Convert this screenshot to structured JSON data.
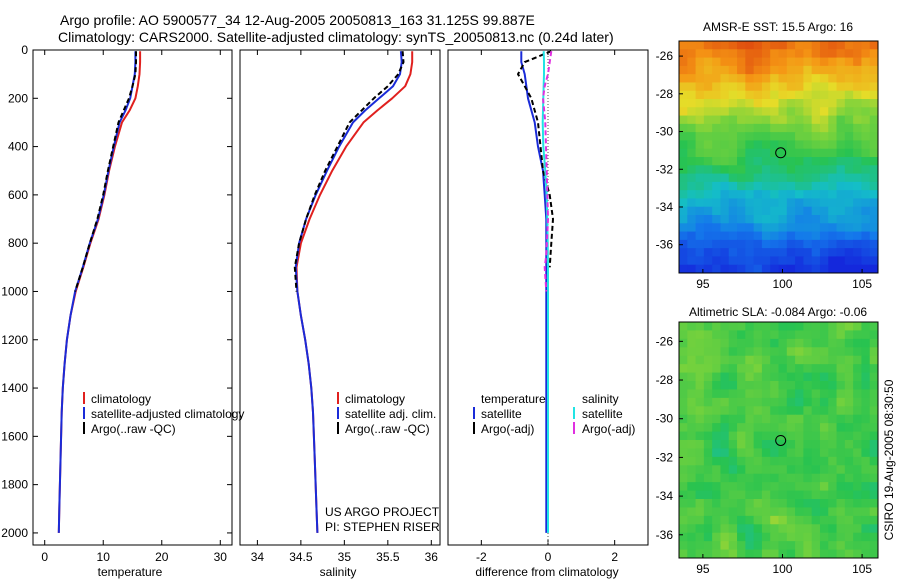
{
  "figure": {
    "title_line1": "Argo profile: AO 5900577_34 12-Aug-2005 20050813_163 31.125S 99.887E",
    "title_line2": "Climatology: CARS2000. Satellite-adjusted climatology: synTS_20050813.nc (0.24d later)",
    "side_label": "CSIRO 19-Aug-2005 08:30:50",
    "credit_line1": "US ARGO PROJECT",
    "credit_line2": "PI: STEPHEN RISER"
  },
  "colors": {
    "climatology": "#e0201e",
    "satellite": "#1a2bd8",
    "argo": "#000000",
    "satellite_sal": "#20e4e4",
    "argo_sal": "#e030e0",
    "zero_line": "#555555"
  },
  "chart_data": [
    {
      "type": "line",
      "id": "temperature",
      "xlabel": "temperature",
      "ylabel": "",
      "xlim": [
        -2,
        32
      ],
      "ylim": [
        2050,
        0
      ],
      "xticks": [
        0,
        10,
        20,
        30
      ],
      "yticks": [
        0,
        200,
        400,
        600,
        800,
        1000,
        1200,
        1400,
        1600,
        1800,
        2000
      ],
      "legend_items": [
        "climatology",
        "satellite-adjusted climatology",
        "Argo(..raw -QC)"
      ],
      "series": [
        {
          "name": "climatology",
          "color_key": "climatology",
          "x": [
            16.3,
            16.3,
            16.2,
            15.9,
            15.5,
            14.5,
            13.2,
            12.0,
            11.0,
            10.2,
            9.2,
            7.8,
            6.6,
            5.3,
            4.4,
            3.8,
            3.4,
            3.1,
            2.9,
            2.7,
            2.5,
            2.4
          ],
          "y": [
            5,
            50,
            100,
            150,
            200,
            250,
            300,
            400,
            500,
            600,
            700,
            800,
            900,
            1000,
            1100,
            1200,
            1300,
            1400,
            1500,
            1700,
            1900,
            2000
          ]
        },
        {
          "name": "satellite-adjusted climatology",
          "color_key": "satellite",
          "x": [
            15.5,
            15.5,
            15.4,
            15.0,
            14.6,
            13.8,
            12.8,
            11.8,
            10.9,
            10.1,
            9.1,
            7.7,
            6.5,
            5.2,
            4.4,
            3.8,
            3.4,
            3.1,
            2.9,
            2.7,
            2.5,
            2.4
          ],
          "y": [
            5,
            50,
            100,
            150,
            200,
            250,
            300,
            400,
            500,
            600,
            700,
            800,
            900,
            1000,
            1100,
            1200,
            1300,
            1400,
            1500,
            1700,
            1900,
            2000
          ]
        },
        {
          "name": "Argo(..raw -QC)",
          "color_key": "argo",
          "dashed": true,
          "x": [
            15.6,
            15.6,
            15.5,
            15.0,
            14.4,
            13.5,
            12.6,
            11.7,
            10.8,
            10.0,
            9.0,
            7.7,
            6.5,
            5.2
          ],
          "y": [
            5,
            50,
            100,
            150,
            200,
            250,
            300,
            400,
            500,
            600,
            700,
            800,
            900,
            1000
          ]
        }
      ]
    },
    {
      "type": "line",
      "id": "salinity",
      "xlabel": "salinity",
      "ylabel": "",
      "xlim": [
        33.8,
        36.1
      ],
      "ylim": [
        2050,
        0
      ],
      "xticks": [
        34,
        34.5,
        35,
        35.5,
        36
      ],
      "xtick_labels": [
        "34",
        "34.5",
        "35",
        "35.5",
        "36"
      ],
      "legend_items": [
        "climatology",
        "satellite adj. clim.",
        "Argo(..raw -QC)"
      ],
      "series": [
        {
          "name": "climatology",
          "color_key": "climatology",
          "x": [
            35.78,
            35.78,
            35.76,
            35.7,
            35.55,
            35.38,
            35.22,
            35.02,
            34.86,
            34.72,
            34.6,
            34.5,
            34.45,
            34.46,
            34.5,
            34.55,
            34.59,
            34.62,
            34.64,
            34.66,
            34.68,
            34.69
          ],
          "y": [
            5,
            50,
            100,
            150,
            200,
            250,
            300,
            400,
            500,
            600,
            700,
            800,
            900,
            1000,
            1100,
            1200,
            1300,
            1400,
            1500,
            1700,
            1900,
            2000
          ]
        },
        {
          "name": "satellite adj. clim.",
          "color_key": "satellite",
          "x": [
            35.65,
            35.66,
            35.64,
            35.56,
            35.4,
            35.24,
            35.1,
            34.94,
            34.8,
            34.67,
            34.56,
            34.48,
            34.44,
            34.46,
            34.5,
            34.55,
            34.59,
            34.62,
            34.64,
            34.66,
            34.68,
            34.69
          ],
          "y": [
            5,
            50,
            100,
            150,
            200,
            250,
            300,
            400,
            500,
            600,
            700,
            800,
            900,
            1000,
            1100,
            1200,
            1300,
            1400,
            1500,
            1700,
            1900,
            2000
          ]
        },
        {
          "name": "Argo(..raw -QC)",
          "color_key": "argo",
          "dashed": true,
          "x": [
            35.67,
            35.68,
            35.62,
            35.5,
            35.34,
            35.2,
            35.06,
            34.92,
            34.78,
            34.66,
            34.56,
            34.48,
            34.43,
            34.45
          ],
          "y": [
            5,
            50,
            100,
            150,
            200,
            250,
            300,
            400,
            500,
            600,
            700,
            800,
            900,
            1000
          ]
        }
      ]
    },
    {
      "type": "line",
      "id": "difference",
      "xlabel": "difference from climatology",
      "ylabel": "",
      "xlim": [
        -3,
        3
      ],
      "ylim": [
        2050,
        0
      ],
      "xticks": [
        -2,
        0,
        2
      ],
      "legend_left_header": "temperature",
      "legend_right_header": "salinity",
      "legend_items": [
        "satellite",
        "Argo(-adj)",
        "satellite",
        "Argo(-adj)"
      ],
      "series": [
        {
          "name": "temperature satellite",
          "color_key": "satellite",
          "x": [
            -0.8,
            -0.8,
            -0.7,
            -0.6,
            -0.4,
            -0.3,
            -0.15,
            -0.1,
            -0.05,
            -0.05,
            -0.05,
            -0.05,
            -0.05,
            -0.05,
            -0.05,
            -0.05
          ],
          "y": [
            5,
            50,
            100,
            200,
            300,
            400,
            500,
            600,
            700,
            800,
            900,
            1000,
            1200,
            1500,
            1800,
            2000
          ]
        },
        {
          "name": "temperature Argo(-adj)",
          "color_key": "argo",
          "dashed": true,
          "x": [
            0.1,
            -0.7,
            -0.9,
            -0.7,
            -0.5,
            -0.3,
            -0.15,
            0.05,
            0.15,
            0.1,
            0.05
          ],
          "y": [
            5,
            50,
            100,
            150,
            200,
            300,
            500,
            600,
            700,
            800,
            900
          ]
        },
        {
          "name": "salinity satellite",
          "color_key": "satellite_sal",
          "x": [
            -0.13,
            -0.12,
            -0.12,
            -0.14,
            -0.16,
            -0.14,
            -0.08,
            -0.04,
            -0.02,
            -0.01,
            0.0,
            0.0,
            0.0,
            0.0
          ],
          "y": [
            5,
            50,
            100,
            200,
            300,
            400,
            500,
            600,
            700,
            800,
            900,
            1200,
            1600,
            2000
          ]
        },
        {
          "name": "salinity Argo(-adj)",
          "color_key": "argo_sal",
          "dashed": true,
          "x": [
            0.1,
            0.05,
            0.0,
            -0.1,
            -0.15,
            -0.08,
            -0.04,
            0.0,
            -0.05,
            -0.1,
            -0.05
          ],
          "y": [
            5,
            50,
            100,
            150,
            200,
            300,
            500,
            700,
            850,
            900,
            1000
          ]
        }
      ]
    },
    {
      "type": "heatmap",
      "id": "sst_map",
      "title": "AMSR-E SST: 15.5 Argo: 16",
      "xlim": [
        93.5,
        106
      ],
      "ylim": [
        -37.5,
        -25.2
      ],
      "xticks": [
        95,
        100,
        105
      ],
      "yticks": [
        -26,
        -28,
        -30,
        -32,
        -34,
        -36
      ],
      "marker": {
        "lon": 99.887,
        "lat": -31.125
      }
    },
    {
      "type": "heatmap",
      "id": "sla_map",
      "title": "Altimetric SLA: -0.084 Argo: -0.06",
      "xlim": [
        93.5,
        106
      ],
      "ylim": [
        -37.2,
        -25.0
      ],
      "xticks": [
        95,
        100,
        105
      ],
      "yticks": [
        -26,
        -28,
        -30,
        -32,
        -34,
        -36
      ],
      "marker": {
        "lon": 99.887,
        "lat": -31.125
      }
    }
  ]
}
